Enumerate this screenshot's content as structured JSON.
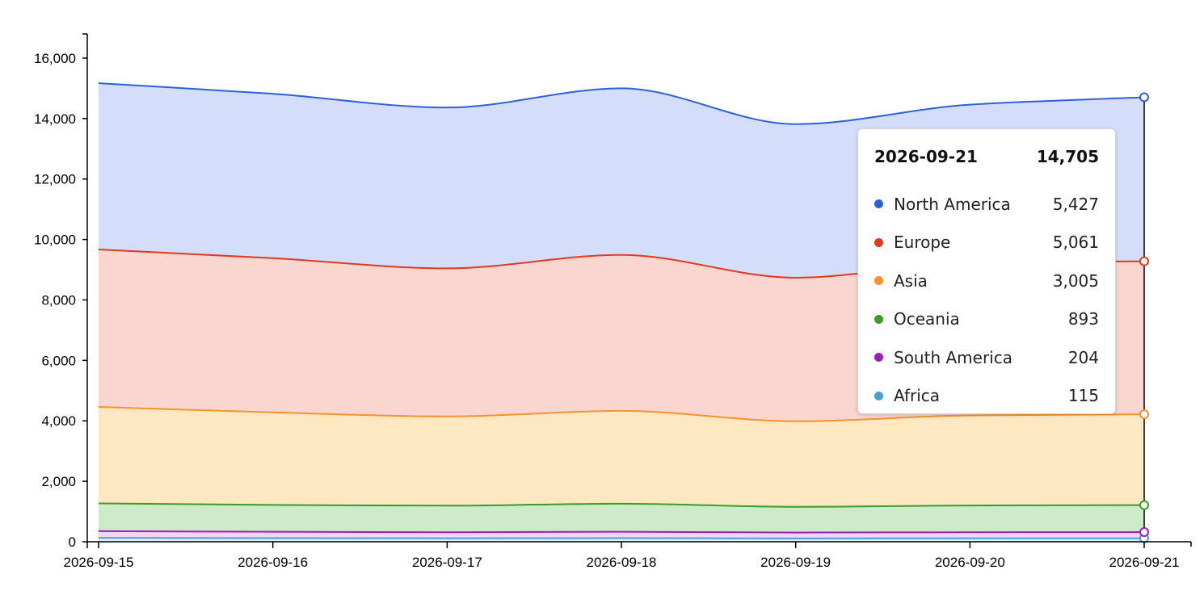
{
  "chart_data": {
    "type": "area",
    "stacked": true,
    "x": [
      "2026-09-15",
      "2026-09-16",
      "2026-09-17",
      "2026-09-18",
      "2026-09-19",
      "2026-09-20",
      "2026-09-21"
    ],
    "ylim": [
      0,
      16800
    ],
    "yticks": [
      0,
      2000,
      4000,
      6000,
      8000,
      10000,
      12000,
      14000,
      16000
    ],
    "ytick_labels": [
      "0",
      "2,000",
      "4,000",
      "6,000",
      "8,000",
      "10,000",
      "12,000",
      "14,000",
      "16,000"
    ],
    "grid": false,
    "series": [
      {
        "name": "Africa",
        "color": "#4a9fd5",
        "fill": "#dbeefa",
        "values": [
          130,
          120,
          115,
          120,
          110,
          115,
          115
        ]
      },
      {
        "name": "South America",
        "color": "#9c1fb5",
        "fill": "#f3d6f5",
        "values": [
          220,
          210,
          200,
          210,
          195,
          200,
          204
        ]
      },
      {
        "name": "Oceania",
        "color": "#3d9a2b",
        "fill": "#cdebc9",
        "values": [
          920,
          890,
          880,
          930,
          850,
          885,
          893
        ]
      },
      {
        "name": "Asia",
        "color": "#f7922c",
        "fill": "#fde8c2",
        "values": [
          3190,
          3060,
          2950,
          3070,
          2830,
          2980,
          3005
        ]
      },
      {
        "name": "Europe",
        "color": "#df3b1f",
        "fill": "#f9d6cf",
        "values": [
          5210,
          5100,
          4900,
          5160,
          4750,
          5050,
          5061
        ]
      },
      {
        "name": "North America",
        "color": "#2d62d4",
        "fill": "#d4defa",
        "values": [
          5500,
          5440,
          5320,
          5510,
          5080,
          5230,
          5427
        ]
      }
    ],
    "hover_index": 6
  },
  "tooltip": {
    "date": "2026-09-21",
    "total": "14,705",
    "rows": [
      {
        "name": "North America",
        "value": "5,427",
        "color": "#2d62d4"
      },
      {
        "name": "Europe",
        "value": "5,061",
        "color": "#df3b1f"
      },
      {
        "name": "Asia",
        "value": "3,005",
        "color": "#f7922c"
      },
      {
        "name": "Oceania",
        "value": "893",
        "color": "#3d9a2b"
      },
      {
        "name": "South America",
        "value": "204",
        "color": "#9c1fb5"
      },
      {
        "name": "Africa",
        "value": "115",
        "color": "#4a9fd5"
      }
    ]
  }
}
